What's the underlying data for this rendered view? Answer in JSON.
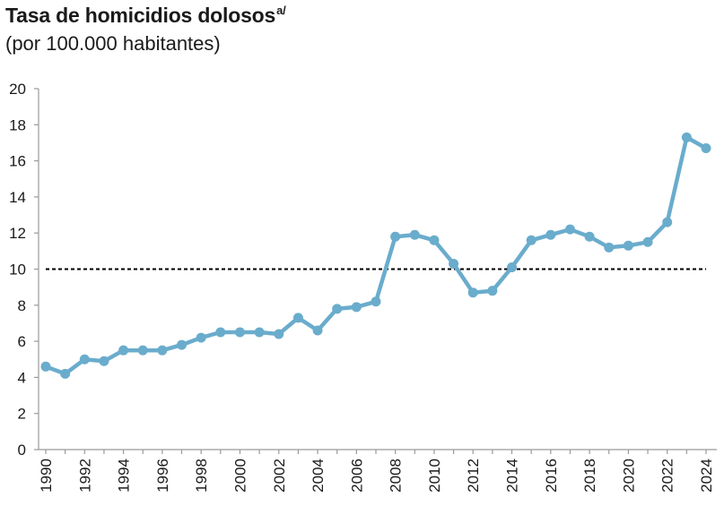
{
  "header": {
    "title": "Tasa de homicidios dolosos",
    "title_note": "a/",
    "subtitle": "(por 100.000 habitantes)"
  },
  "chart_data": {
    "type": "line",
    "title": "Tasa de homicidios dolosos",
    "subtitle": "(por 100.000 habitantes)",
    "xlabel": "",
    "ylabel": "",
    "x": [
      1990,
      1991,
      1992,
      1993,
      1994,
      1995,
      1996,
      1997,
      1998,
      1999,
      2000,
      2001,
      2002,
      2003,
      2004,
      2005,
      2006,
      2007,
      2008,
      2009,
      2010,
      2011,
      2012,
      2013,
      2014,
      2015,
      2016,
      2017,
      2018,
      2019,
      2020,
      2021,
      2022,
      2023,
      2024
    ],
    "series": [
      {
        "values": [
          4.6,
          4.2,
          5.0,
          4.9,
          5.5,
          5.5,
          5.5,
          5.8,
          6.2,
          6.5,
          6.5,
          6.5,
          6.4,
          7.3,
          6.6,
          7.8,
          7.9,
          8.2,
          11.8,
          11.9,
          11.6,
          10.3,
          8.7,
          8.8,
          10.1,
          11.6,
          11.9,
          12.2,
          11.8,
          11.2,
          11.3,
          11.5,
          12.6,
          17.3,
          16.7
        ],
        "color": "#6aaccc"
      }
    ],
    "reference_line": {
      "y": 10,
      "style": "dashed",
      "color": "#000000"
    },
    "xlim": [
      1990,
      2024
    ],
    "ylim": [
      0,
      20
    ],
    "y_ticks": [
      0,
      2,
      4,
      6,
      8,
      10,
      12,
      14,
      16,
      18,
      20
    ],
    "x_ticks": [
      1990,
      1992,
      1994,
      1996,
      1998,
      2000,
      2002,
      2004,
      2006,
      2008,
      2010,
      2012,
      2014,
      2016,
      2018,
      2020,
      2022,
      2024
    ],
    "grid": false,
    "legend": "none"
  }
}
